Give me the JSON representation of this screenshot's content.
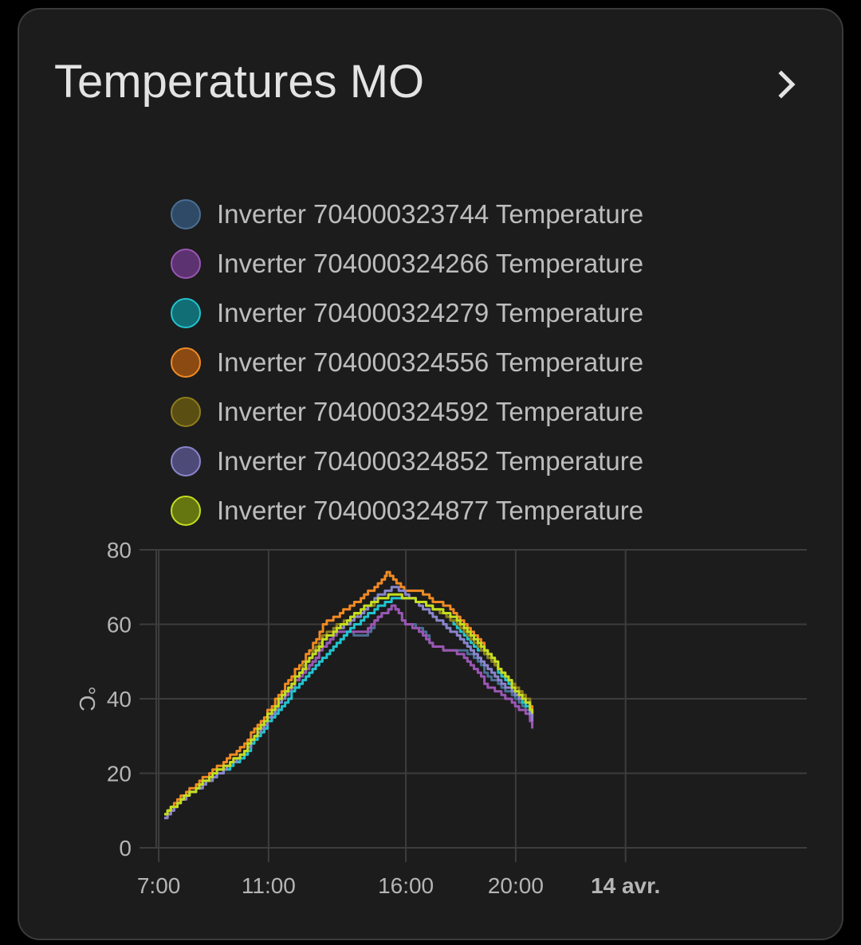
{
  "card": {
    "title": "Temperatures MO",
    "more_icon": "chevron-right-icon"
  },
  "chart_data": {
    "type": "line",
    "title": "",
    "ylabel": "°C",
    "ylim": [
      0,
      80
    ],
    "yticks": [
      0,
      20,
      40,
      60,
      80
    ],
    "x_tick_labels": [
      "7:00",
      "11:00",
      "16:00",
      "20:00",
      "14 avr."
    ],
    "x_tick_hours": [
      7,
      11,
      16,
      20,
      24
    ],
    "xlim_hours": [
      6.3,
      30.6
    ],
    "grid": true,
    "legend_position": "top",
    "series": [
      {
        "name": "Inverter 704000323744 Temperature",
        "color": "#4a6e93",
        "fill": "#2f4a66",
        "points": [
          [
            7.2,
            8
          ],
          [
            8,
            14
          ],
          [
            9,
            19
          ],
          [
            10,
            25
          ],
          [
            11,
            35
          ],
          [
            12,
            45
          ],
          [
            13,
            54
          ],
          [
            13.5,
            58
          ],
          [
            14.5,
            57
          ],
          [
            15,
            62
          ],
          [
            15.5,
            65
          ],
          [
            16,
            60
          ],
          [
            16.5,
            59
          ],
          [
            17,
            54
          ],
          [
            17.5,
            53
          ],
          [
            18,
            53
          ],
          [
            18.5,
            51
          ],
          [
            19,
            46
          ],
          [
            19.5,
            43
          ],
          [
            20,
            40
          ],
          [
            20.4,
            37
          ],
          [
            20.6,
            33
          ]
        ]
      },
      {
        "name": "Inverter 704000324266 Temperature",
        "color": "#9a56b3",
        "fill": "#5c3270",
        "points": [
          [
            7.2,
            8
          ],
          [
            8,
            14
          ],
          [
            9,
            19
          ],
          [
            10,
            25
          ],
          [
            11,
            35
          ],
          [
            12,
            45
          ],
          [
            13,
            54
          ],
          [
            13.5,
            58
          ],
          [
            14.5,
            58
          ],
          [
            15,
            62
          ],
          [
            15.5,
            65
          ],
          [
            16,
            60
          ],
          [
            16.5,
            58
          ],
          [
            17,
            54
          ],
          [
            17.5,
            53
          ],
          [
            18,
            52
          ],
          [
            18.5,
            48
          ],
          [
            19,
            43
          ],
          [
            19.5,
            41
          ],
          [
            20,
            38
          ],
          [
            20.4,
            36
          ],
          [
            20.6,
            32
          ]
        ]
      },
      {
        "name": "Inverter 704000324279 Temperature",
        "color": "#21c4cf",
        "fill": "#116e74",
        "points": [
          [
            7.2,
            9
          ],
          [
            8,
            14
          ],
          [
            9,
            19
          ],
          [
            10,
            24
          ],
          [
            11,
            34
          ],
          [
            12,
            43
          ],
          [
            13,
            51
          ],
          [
            13.5,
            55
          ],
          [
            14,
            59
          ],
          [
            14.5,
            62
          ],
          [
            15,
            65
          ],
          [
            15.5,
            67
          ],
          [
            16,
            67
          ],
          [
            16.5,
            66
          ],
          [
            17,
            64
          ],
          [
            17.5,
            62
          ],
          [
            18,
            58
          ],
          [
            18.5,
            54
          ],
          [
            19,
            51
          ],
          [
            19.5,
            46
          ],
          [
            20,
            41
          ],
          [
            20.4,
            38
          ],
          [
            20.6,
            35
          ]
        ]
      },
      {
        "name": "Inverter 704000324556 Temperature",
        "color": "#f08a24",
        "fill": "#8a4a12",
        "points": [
          [
            7.2,
            9
          ],
          [
            8,
            15
          ],
          [
            9,
            21
          ],
          [
            10,
            27
          ],
          [
            11,
            37
          ],
          [
            12,
            48
          ],
          [
            12.5,
            53
          ],
          [
            13,
            60
          ],
          [
            14,
            65
          ],
          [
            14.5,
            68
          ],
          [
            15,
            71
          ],
          [
            15.3,
            74
          ],
          [
            15.7,
            71
          ],
          [
            16,
            69
          ],
          [
            16.5,
            69
          ],
          [
            17,
            66
          ],
          [
            17.5,
            65
          ],
          [
            18,
            61
          ],
          [
            18.5,
            57
          ],
          [
            19,
            52
          ],
          [
            19.5,
            47
          ],
          [
            20,
            43
          ],
          [
            20.4,
            40
          ],
          [
            20.6,
            36
          ]
        ]
      },
      {
        "name": "Inverter 704000324592 Temperature",
        "color": "#8f7d1d",
        "fill": "#5a4e12",
        "points": [
          [
            7.2,
            9
          ],
          [
            8,
            14
          ],
          [
            9,
            20
          ],
          [
            10,
            25
          ],
          [
            11,
            36
          ],
          [
            12,
            46
          ],
          [
            13,
            57
          ],
          [
            13.5,
            60
          ],
          [
            14,
            62
          ],
          [
            14.5,
            64
          ],
          [
            15,
            67
          ],
          [
            15.5,
            68
          ],
          [
            16,
            67
          ],
          [
            16.5,
            66
          ],
          [
            17,
            64
          ],
          [
            17.5,
            62
          ],
          [
            18,
            59
          ],
          [
            18.5,
            55
          ],
          [
            19,
            51
          ],
          [
            19.5,
            47
          ],
          [
            20,
            43
          ],
          [
            20.4,
            40
          ],
          [
            20.6,
            35
          ]
        ]
      },
      {
        "name": "Inverter 704000324852 Temperature",
        "color": "#8a85cc",
        "fill": "#4d4a78",
        "points": [
          [
            7.2,
            8
          ],
          [
            8,
            14
          ],
          [
            9,
            19
          ],
          [
            10,
            25
          ],
          [
            11,
            35
          ],
          [
            12,
            46
          ],
          [
            13,
            56
          ],
          [
            13.5,
            59
          ],
          [
            14,
            61
          ],
          [
            14.5,
            64
          ],
          [
            15,
            68
          ],
          [
            15.5,
            70
          ],
          [
            16,
            68
          ],
          [
            16.5,
            65
          ],
          [
            17,
            62
          ],
          [
            17.5,
            59
          ],
          [
            18,
            56
          ],
          [
            18.5,
            52
          ],
          [
            19,
            48
          ],
          [
            19.5,
            44
          ],
          [
            20,
            41
          ],
          [
            20.4,
            39
          ],
          [
            20.6,
            34
          ]
        ]
      },
      {
        "name": "Inverter 704000324877 Temperature",
        "color": "#c4dd1e",
        "fill": "#657510",
        "points": [
          [
            7.2,
            9
          ],
          [
            8,
            14
          ],
          [
            9,
            20
          ],
          [
            10,
            25
          ],
          [
            11,
            36
          ],
          [
            12,
            46
          ],
          [
            13,
            56
          ],
          [
            13.5,
            59
          ],
          [
            14,
            62
          ],
          [
            14.5,
            65
          ],
          [
            15,
            67
          ],
          [
            15.5,
            68
          ],
          [
            16,
            67
          ],
          [
            16.5,
            66
          ],
          [
            17,
            64
          ],
          [
            17.5,
            63
          ],
          [
            18,
            60
          ],
          [
            18.5,
            56
          ],
          [
            19,
            52
          ],
          [
            19.5,
            47
          ],
          [
            20,
            42
          ],
          [
            20.4,
            39
          ],
          [
            20.6,
            36
          ]
        ]
      }
    ]
  }
}
